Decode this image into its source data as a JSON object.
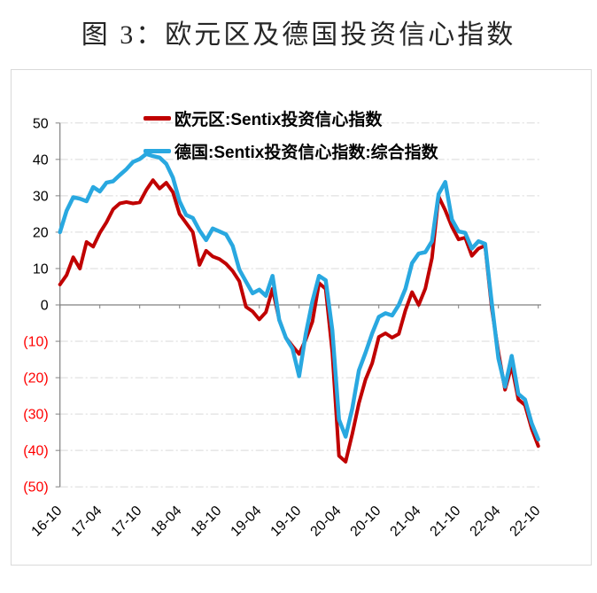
{
  "page": {
    "title": "图 3：欧元区及德国投资信心指数"
  },
  "chart_data": {
    "type": "line",
    "title": "图 3：欧元区及德国投资信心指数",
    "frequency": "monthly",
    "x_axis": {
      "start": "2016-10",
      "end": "2022-10",
      "tick_interval_months": 6,
      "tick_labels": [
        "16-10",
        "17-04",
        "17-10",
        "18-04",
        "18-10",
        "19-04",
        "19-10",
        "20-04",
        "20-10",
        "21-04",
        "21-10",
        "22-04",
        "22-10"
      ],
      "label_rotation_deg": -45
    },
    "y_axis": {
      "range": [
        -50,
        50
      ],
      "tick_step": 10,
      "negative_format": "parentheses-red",
      "ticks": [
        {
          "label": "50",
          "value": 50
        },
        {
          "label": "40",
          "value": 40
        },
        {
          "label": "30",
          "value": 30
        },
        {
          "label": "20",
          "value": 20
        },
        {
          "label": "10",
          "value": 10
        },
        {
          "label": "0",
          "value": 0
        },
        {
          "label": "(10)",
          "value": -10
        },
        {
          "label": "(20)",
          "value": -20
        },
        {
          "label": "(30)",
          "value": -30
        },
        {
          "label": "(40)",
          "value": -40
        },
        {
          "label": "(50)",
          "value": -50
        }
      ]
    },
    "grid": "horizontal-dash-dot",
    "legend_position": "top-center-inside",
    "colors": {
      "grid": "#d9d9d9",
      "zero_axis": "#808080",
      "negative_label": "#ff0000",
      "tick_label": "#000000",
      "frame_border": "#d9d9d9"
    },
    "series": [
      {
        "name": "欧元区:Sentix投资信心指数",
        "color": "#c00000",
        "width": 4,
        "values": [
          5.6,
          8.2,
          13.1,
          10.0,
          17.3,
          16.0,
          19.8,
          22.7,
          26.3,
          27.9,
          28.3,
          27.9,
          28.2,
          31.6,
          34.3,
          32.0,
          33.6,
          31.0,
          25.0,
          22.5,
          20.0,
          11.0,
          14.9,
          13.3,
          12.6,
          11.3,
          9.3,
          6.5,
          -0.5,
          -1.8,
          -4.0,
          -2.0,
          4.4,
          -4.0,
          -9.0,
          -11.3,
          -13.5,
          -9.5,
          -4.6,
          6.0,
          4.4,
          -13.1,
          -41.5,
          -43.1,
          -35.5,
          -27.0,
          -20.5,
          -16.0,
          -8.8,
          -7.8,
          -9.0,
          -8.0,
          -1.5,
          3.5,
          0.0,
          4.5,
          12.9,
          29.8,
          26.0,
          21.5,
          18.0,
          18.5,
          13.5,
          15.5,
          16.3,
          -1.0,
          -13.0,
          -23.3,
          -16.7,
          -26.0,
          -27.5,
          -34.0,
          -38.8
        ]
      },
      {
        "name": "德国:Sentix投资信心指数:综合指数",
        "color": "#29a8e0",
        "width": 4.5,
        "values": [
          20.0,
          25.9,
          29.6,
          29.2,
          28.5,
          32.4,
          31.2,
          33.6,
          34.0,
          35.7,
          37.3,
          39.3,
          40.1,
          41.5,
          40.9,
          40.5,
          38.8,
          35.0,
          28.5,
          24.7,
          23.9,
          20.5,
          17.8,
          21.0,
          20.2,
          19.4,
          16.2,
          9.7,
          6.4,
          3.2,
          4.2,
          2.5,
          8.0,
          -4.1,
          -9.0,
          -12.0,
          -19.6,
          -8.0,
          1.0,
          8.0,
          6.8,
          -7.0,
          -31.5,
          -36.2,
          -28.5,
          -18.0,
          -13.1,
          -7.8,
          -3.3,
          -2.3,
          -2.9,
          0.0,
          4.4,
          11.5,
          14.1,
          14.5,
          17.5,
          30.5,
          33.8,
          23.5,
          20.2,
          19.8,
          15.5,
          17.5,
          16.8,
          0.5,
          -14.7,
          -22.5,
          -14.0,
          -24.5,
          -26.0,
          -32.5,
          -37.0
        ]
      }
    ]
  }
}
